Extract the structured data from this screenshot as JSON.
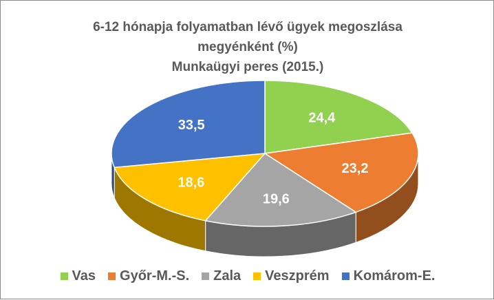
{
  "chart_data": {
    "type": "pie",
    "title_lines": [
      "6-12 hónapja  folyamatban lévő ügyek megoszlása",
      "megyénként (%)",
      "Munkaügyi peres (2015.)"
    ],
    "slices": [
      {
        "name": "Vas",
        "value": 24.4,
        "label": "24,4",
        "color": "#92d050"
      },
      {
        "name": "Győr-M.-S.",
        "value": 23.2,
        "label": "23,2",
        "color": "#ed7d31"
      },
      {
        "name": "Zala",
        "value": 19.6,
        "label": "19,6",
        "color": "#a5a5a5"
      },
      {
        "name": "Veszprém",
        "value": 18.6,
        "label": "18,6",
        "color": "#ffc000"
      },
      {
        "name": "Komárom-E.",
        "value": 33.5,
        "label": "33,5",
        "color": "#4472c4"
      }
    ],
    "legend_position": "bottom",
    "style": "3d"
  }
}
